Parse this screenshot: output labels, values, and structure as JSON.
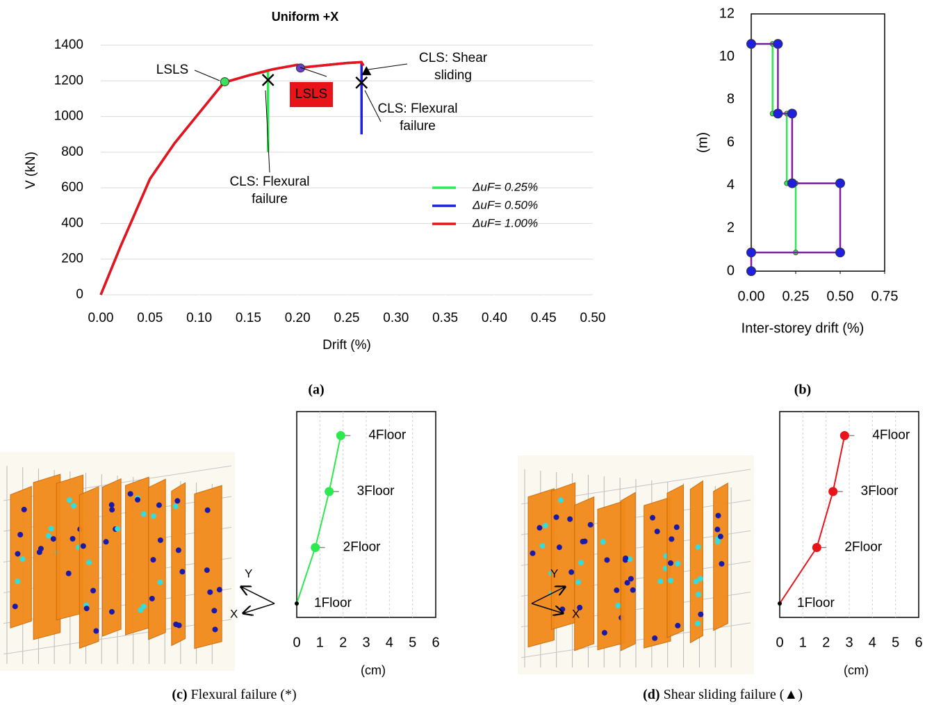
{
  "chart_data": [
    {
      "type": "line",
      "title": "Uniform +X",
      "x_label": "Drift (%)",
      "y_label": "V (kN)",
      "caption": "(a)",
      "xlim": [
        0,
        0.5
      ],
      "xticks": [
        {
          "value": 0,
          "label": "0.00"
        },
        0.05,
        {
          "value": 0.1,
          "label": "0.10"
        },
        0.15,
        {
          "value": 0.2,
          "label": "0.20"
        },
        0.25,
        {
          "value": 0.3,
          "label": "0.30"
        },
        0.35,
        {
          "value": 0.4,
          "label": "0.40"
        },
        0.45,
        {
          "value": 0.5,
          "label": "0.50"
        }
      ],
      "ylim": [
        0,
        1400
      ],
      "yticks": [
        0,
        200,
        400,
        600,
        800,
        1000,
        1200,
        1400
      ],
      "grid": true,
      "legend": "right",
      "series": [
        {
          "name": "ΔuF= 0.25%",
          "color": "#2ee84f",
          "x": [
            0,
            0.02,
            0.05,
            0.075,
            0.1,
            0.125,
            0.15,
            0.17,
            0.17
          ],
          "values": [
            0,
            270,
            650,
            850,
            1020,
            1190,
            1230,
            1255,
            800
          ]
        },
        {
          "name": "ΔuF= 0.50%",
          "color": "#1f1fe0",
          "x": [
            0,
            0.02,
            0.05,
            0.075,
            0.1,
            0.125,
            0.15,
            0.175,
            0.2,
            0.205,
            0.25,
            0.265,
            0.265
          ],
          "values": [
            0,
            270,
            650,
            850,
            1020,
            1190,
            1230,
            1265,
            1290,
            1275,
            1300,
            1305,
            900
          ]
        },
        {
          "name": "ΔuF= 1.00%",
          "color": "#e8141a",
          "x": [
            0,
            0.02,
            0.05,
            0.075,
            0.1,
            0.125,
            0.15,
            0.175,
            0.2,
            0.205,
            0.25,
            0.265,
            0.267
          ],
          "values": [
            0,
            270,
            650,
            850,
            1020,
            1190,
            1230,
            1265,
            1290,
            1275,
            1300,
            1305,
            1285
          ]
        }
      ],
      "markers": [
        {
          "shape": "circle",
          "color": "#3ee05c",
          "x": 0.126,
          "y": 1195
        },
        {
          "shape": "circle",
          "color": "#6a3fc8",
          "x": 0.203,
          "y": 1272
        },
        {
          "shape": "cross",
          "color": "#000000",
          "x": 0.17,
          "y": 1205
        },
        {
          "shape": "cross",
          "color": "#000000",
          "x": 0.265,
          "y": 1190
        },
        {
          "shape": "triangle",
          "color": "#000000",
          "x": 0.27,
          "y": 1255
        }
      ],
      "annotations": [
        {
          "text": [
            "LSLS"
          ],
          "color": "#2ee84f"
        },
        {
          "text": [
            "LSLS"
          ],
          "color": "#3b3bdb",
          "box": "#e8141a"
        },
        {
          "text": [
            "CLS: Shear",
            "sliding"
          ],
          "color": "#e8141a"
        },
        {
          "text": [
            "CLS: Flexural",
            "failure"
          ],
          "color": "#2020d0"
        },
        {
          "text": [
            "CLS: Flexural",
            "failure"
          ],
          "color": "#2ee84f"
        }
      ]
    },
    {
      "type": "line",
      "x_label": "Inter-storey drift (%)",
      "y_label": "(m)",
      "caption": "(b)",
      "xlim": [
        0,
        0.75
      ],
      "xticks": [
        {
          "value": 0,
          "label": "0.00"
        },
        0.25,
        {
          "value": 0.5,
          "label": "0.50"
        },
        0.75
      ],
      "ylim": [
        0,
        12
      ],
      "yticks": [
        0,
        2,
        4,
        6,
        8,
        10,
        12
      ],
      "grid": false,
      "series": [
        {
          "color": "#2ee84f",
          "marker_color": "#2ee84f",
          "x": [
            0.25,
            0.25,
            0.2,
            0.2,
            0.12,
            0.12,
            0
          ],
          "values": [
            0.87,
            4.1,
            4.1,
            7.35,
            7.35,
            10.6,
            10.6
          ]
        },
        {
          "color": "#7b1fa2",
          "marker_color": "#1f1fe0",
          "x": [
            0,
            0,
            0.5,
            0.5,
            0.23,
            0.23,
            0.15,
            0.15,
            0
          ],
          "values": [
            0,
            0.87,
            0.87,
            4.1,
            4.1,
            7.35,
            7.35,
            10.6,
            10.6
          ]
        }
      ]
    },
    {
      "type": "profile",
      "x_label": "(cm)",
      "caption_label": "(c)",
      "caption": "Flexural failure (*)",
      "xlim": [
        0,
        6
      ],
      "xticks": [
        0,
        1,
        2,
        3,
        4,
        5,
        6
      ],
      "grid": true,
      "color": "#2ee84f",
      "categories": [
        "1Floor",
        "2Floor",
        "3Floor",
        "4Floor"
      ],
      "values": [
        0,
        0.8,
        1.4,
        1.9
      ],
      "axis_markers": [
        "Y",
        "X"
      ]
    },
    {
      "type": "profile",
      "x_label": "(cm)",
      "caption_label": "(d)",
      "caption": "Shear sliding failure (▲)",
      "xlim": [
        0,
        6
      ],
      "xticks": [
        0,
        1,
        2,
        3,
        4,
        5,
        6
      ],
      "grid": true,
      "color": "#e8141a",
      "categories": [
        "1Floor",
        "2Floor",
        "3Floor",
        "4Floor"
      ],
      "values": [
        0,
        1.6,
        2.3,
        2.8
      ],
      "axis_markers": [
        "Y",
        "X"
      ]
    }
  ]
}
